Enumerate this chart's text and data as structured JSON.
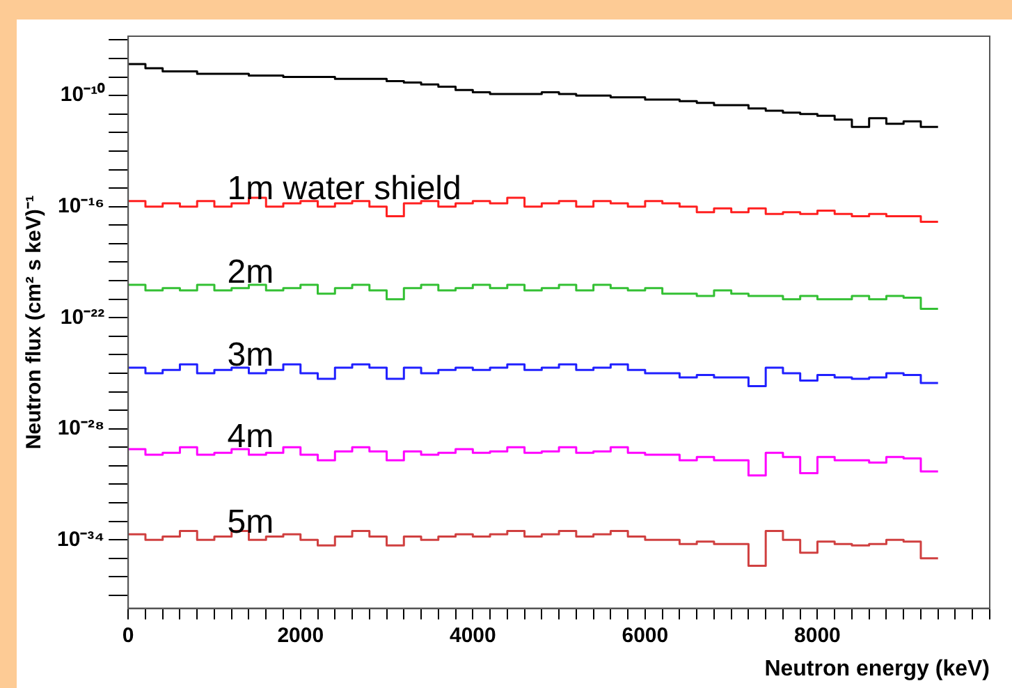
{
  "chart_data": {
    "type": "histogram",
    "xlabel": "Neutron energy (keV)",
    "ylabel": "Neutron flux (cm² s keV)⁻¹",
    "log": "y",
    "grid": false,
    "legend": false,
    "bins": [
      0,
      200,
      400,
      600,
      800,
      1000,
      1200,
      1400,
      1600,
      1800,
      2000,
      2200,
      2400,
      2600,
      2800,
      3000,
      3200,
      3400,
      3600,
      3800,
      4000,
      4200,
      4400,
      4600,
      4800,
      5000,
      5200,
      5400,
      5600,
      5800,
      6000,
      6200,
      6400,
      6600,
      6800,
      7000,
      7200,
      7400,
      7600,
      7800,
      8000,
      8200,
      8400,
      8600,
      8800,
      9000,
      9200,
      9400
    ],
    "xlim": [
      0,
      10000
    ],
    "xticks": [
      0,
      {
        "value": 200,
        "label": null
      },
      {
        "value": 400,
        "label": null
      },
      {
        "value": 600,
        "label": null
      },
      {
        "value": 800,
        "label": null
      },
      {
        "value": 1000,
        "label": null
      },
      {
        "value": 1200,
        "label": null
      },
      {
        "value": 1400,
        "label": null
      },
      {
        "value": 1600,
        "label": null
      },
      {
        "value": 1800,
        "label": null
      },
      2000,
      {
        "value": 2200,
        "label": null
      },
      {
        "value": 2400,
        "label": null
      },
      {
        "value": 2600,
        "label": null
      },
      {
        "value": 2800,
        "label": null
      },
      {
        "value": 3000,
        "label": null
      },
      {
        "value": 3200,
        "label": null
      },
      {
        "value": 3400,
        "label": null
      },
      {
        "value": 3600,
        "label": null
      },
      {
        "value": 3800,
        "label": null
      },
      4000,
      {
        "value": 4200,
        "label": null
      },
      {
        "value": 4400,
        "label": null
      },
      {
        "value": 4600,
        "label": null
      },
      {
        "value": 4800,
        "label": null
      },
      {
        "value": 5000,
        "label": null
      },
      {
        "value": 5200,
        "label": null
      },
      {
        "value": 5400,
        "label": null
      },
      {
        "value": 5600,
        "label": null
      },
      {
        "value": 5800,
        "label": null
      },
      6000,
      {
        "value": 6200,
        "label": null
      },
      {
        "value": 6400,
        "label": null
      },
      {
        "value": 6600,
        "label": null
      },
      {
        "value": 6800,
        "label": null
      },
      {
        "value": 7000,
        "label": null
      },
      {
        "value": 7200,
        "label": null
      },
      {
        "value": 7400,
        "label": null
      },
      {
        "value": 7600,
        "label": null
      },
      {
        "value": 7800,
        "label": null
      },
      8000,
      {
        "value": 8200,
        "label": null
      },
      {
        "value": 8400,
        "label": null
      },
      {
        "value": 8600,
        "label": null
      },
      {
        "value": 8800,
        "label": null
      },
      {
        "value": 9000,
        "label": null
      },
      {
        "value": 9200,
        "label": null
      },
      {
        "value": 9400,
        "label": null
      },
      {
        "value": 9600,
        "label": null
      },
      {
        "value": 9800,
        "label": null
      },
      {
        "value": 10000,
        "label": null
      }
    ],
    "ylim": [
      2e-38,
      1.6e-07
    ],
    "yticks": [
      {
        "value": 1e-37,
        "label": null
      },
      {
        "value": 1e-36,
        "label": null
      },
      {
        "value": 1e-35,
        "label": null
      },
      {
        "value": 1e-34,
        "label": "10⁻³⁴"
      },
      {
        "value": 1e-33,
        "label": null
      },
      {
        "value": 1e-32,
        "label": null
      },
      {
        "value": 1e-31,
        "label": null
      },
      {
        "value": 1e-30,
        "label": null
      },
      {
        "value": 1e-29,
        "label": null
      },
      {
        "value": 1e-28,
        "label": "10⁻²⁸"
      },
      {
        "value": 1e-27,
        "label": null
      },
      {
        "value": 1e-26,
        "label": null
      },
      {
        "value": 1e-25,
        "label": null
      },
      {
        "value": 1e-24,
        "label": null
      },
      {
        "value": 1e-23,
        "label": null
      },
      {
        "value": 1e-22,
        "label": "10⁻²²"
      },
      {
        "value": 1e-21,
        "label": null
      },
      {
        "value": 1e-20,
        "label": null
      },
      {
        "value": 1e-19,
        "label": null
      },
      {
        "value": 1e-18,
        "label": null
      },
      {
        "value": 1e-17,
        "label": null
      },
      {
        "value": 1e-16,
        "label": "10⁻¹⁶"
      },
      {
        "value": 1e-15,
        "label": null
      },
      {
        "value": 1e-14,
        "label": null
      },
      {
        "value": 1e-13,
        "label": null
      },
      {
        "value": 1e-12,
        "label": null
      },
      {
        "value": 1e-11,
        "label": null
      },
      {
        "value": 1e-10,
        "label": "10⁻¹⁰"
      },
      {
        "value": 1e-09,
        "label": null
      },
      {
        "value": 1e-08,
        "label": null
      },
      {
        "value": 1e-07,
        "label": null
      }
    ],
    "series": [
      {
        "color": "#000000",
        "values": [
          5e-09,
          3e-09,
          2e-09,
          2e-09,
          1.5e-09,
          1.5e-09,
          1.5e-09,
          1.2e-09,
          1.2e-09,
          1e-09,
          1e-09,
          1e-09,
          8e-10,
          8e-10,
          8e-10,
          6e-10,
          5e-10,
          4e-10,
          3e-10,
          2e-10,
          1.5e-10,
          1.2e-10,
          1.2e-10,
          1.2e-10,
          1.5e-10,
          1.2e-10,
          1e-10,
          1e-10,
          8e-11,
          8e-11,
          6e-11,
          6e-11,
          5e-11,
          4e-11,
          3e-11,
          3e-11,
          2e-11,
          1.5e-11,
          1.2e-11,
          1e-11,
          8e-12,
          5e-12,
          2e-12,
          6e-12,
          3e-12,
          4e-12,
          2e-12
        ]
      },
      {
        "name": "1m water shield",
        "color": "#ff2020",
        "values": [
          2e-16,
          1e-16,
          1.5e-16,
          1e-16,
          2e-16,
          1e-16,
          1.5e-16,
          3e-16,
          1e-16,
          1.5e-16,
          2e-16,
          1e-16,
          1.5e-16,
          2e-16,
          1e-16,
          3e-17,
          1.5e-16,
          2e-16,
          1e-16,
          1.5e-16,
          2e-16,
          1.5e-16,
          3e-16,
          1e-16,
          1.5e-16,
          2e-16,
          1e-16,
          2e-16,
          1.5e-16,
          1e-16,
          2e-16,
          1.5e-16,
          1e-16,
          5e-17,
          8e-17,
          5e-17,
          8e-17,
          4e-17,
          5e-17,
          4e-17,
          6e-17,
          4e-17,
          3e-17,
          4e-17,
          3e-17,
          3e-17,
          1.5e-17
        ]
      },
      {
        "name": "2m",
        "color": "#33c033",
        "values": [
          6e-21,
          3e-21,
          4e-21,
          3e-21,
          6e-21,
          3e-21,
          4e-21,
          6e-21,
          3e-21,
          4e-21,
          6e-21,
          2e-21,
          4e-21,
          6e-21,
          3e-21,
          1e-21,
          4e-21,
          6e-21,
          3e-21,
          4e-21,
          6e-21,
          4e-21,
          6e-21,
          3e-21,
          4e-21,
          6e-21,
          3e-21,
          6e-21,
          4e-21,
          3e-21,
          4e-21,
          2e-21,
          2e-21,
          1.5e-21,
          3e-21,
          2e-21,
          1.5e-21,
          1.5e-21,
          1e-21,
          1.5e-21,
          1e-21,
          1e-21,
          1.5e-21,
          1e-21,
          1.5e-21,
          1.2e-21,
          3e-22
        ]
      },
      {
        "name": "3m",
        "color": "#2020ff",
        "values": [
          2e-25,
          1e-25,
          1.5e-25,
          3e-25,
          1e-25,
          1.5e-25,
          2e-25,
          1e-25,
          1.5e-25,
          3e-25,
          1e-25,
          5e-26,
          2e-25,
          3e-25,
          2e-25,
          5e-26,
          2e-25,
          1e-25,
          1.5e-25,
          2e-25,
          1.5e-25,
          2e-25,
          3e-25,
          1.5e-25,
          2e-25,
          3e-25,
          1.5e-25,
          2e-25,
          3e-25,
          1.5e-25,
          1e-25,
          1e-25,
          6e-26,
          8e-26,
          6e-26,
          6e-26,
          2e-26,
          2e-25,
          1e-25,
          4e-26,
          8e-26,
          6e-26,
          5e-26,
          6e-26,
          1e-25,
          8e-26,
          3e-26
        ]
      },
      {
        "name": "4m",
        "color": "#ff00ff",
        "values": [
          8e-30,
          4e-30,
          5e-30,
          1e-29,
          4e-30,
          5e-30,
          8e-30,
          4e-30,
          5e-30,
          1e-29,
          4e-30,
          2e-30,
          6e-30,
          1e-29,
          6e-30,
          2e-30,
          6e-30,
          4e-30,
          5e-30,
          8e-30,
          5e-30,
          6e-30,
          1e-29,
          5e-30,
          6e-30,
          1e-29,
          5e-30,
          6e-30,
          1e-29,
          5e-30,
          4e-30,
          4e-30,
          2e-30,
          3e-30,
          2e-30,
          2e-30,
          3e-31,
          5e-30,
          3e-30,
          4e-31,
          3e-30,
          2e-30,
          2e-30,
          1.5e-30,
          3e-30,
          2.5e-30,
          5e-31
        ]
      },
      {
        "name": "5m",
        "color": "#d04040",
        "values": [
          2e-34,
          1e-34,
          1.5e-34,
          3e-34,
          1e-34,
          1.5e-34,
          3e-34,
          1e-34,
          1.5e-34,
          2e-34,
          1e-34,
          5e-35,
          1.5e-34,
          3e-34,
          1.5e-34,
          5e-35,
          1.5e-34,
          1e-34,
          1.5e-34,
          2e-34,
          1.5e-34,
          2e-34,
          3e-34,
          1.5e-34,
          2e-34,
          3e-34,
          1.5e-34,
          2e-34,
          3e-34,
          1.5e-34,
          1e-34,
          1e-34,
          6e-35,
          8e-35,
          6e-35,
          6e-35,
          4e-36,
          3e-34,
          1e-34,
          2e-35,
          8e-35,
          6e-35,
          5e-35,
          6e-35,
          1e-34,
          8e-35,
          1e-35
        ]
      }
    ]
  }
}
